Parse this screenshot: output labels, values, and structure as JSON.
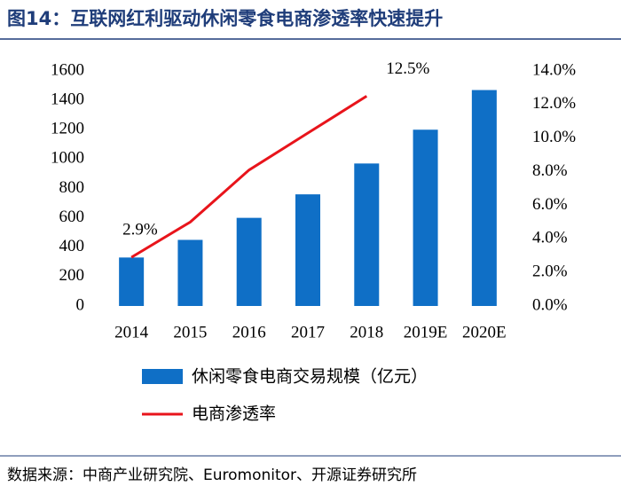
{
  "chart_data": {
    "type": "bar_line",
    "title": "图14：互联网红利驱动休闲零食电商渗透率快速提升",
    "source": "数据来源：中商产业研究院、Euromonitor、开源证券研究所",
    "categories": [
      "2014",
      "2015",
      "2016",
      "2017",
      "2018",
      "2019E",
      "2020E"
    ],
    "series": [
      {
        "name": "休闲零食电商交易规模（亿元）",
        "color": "#0f6fc6",
        "type": "bar",
        "values": [
          330,
          450,
          600,
          760,
          970,
          1200,
          1470
        ]
      },
      {
        "name": "电商渗透率",
        "color": "#e8141b",
        "type": "line",
        "axis": "y2",
        "values": [
          2.9,
          5.0,
          8.1,
          10.3,
          12.5,
          null,
          null
        ],
        "value_labels": [
          "2.9%",
          null,
          null,
          null,
          "12.5%",
          null,
          null
        ]
      }
    ],
    "ylim": [
      0,
      1600
    ],
    "yticks": [
      0,
      200,
      400,
      600,
      800,
      1000,
      1200,
      1400,
      1600
    ],
    "y2lim": [
      0,
      14
    ],
    "y2ticks": [
      {
        "value": 0,
        "label": "0.0%"
      },
      {
        "value": 2,
        "label": "2.0%"
      },
      {
        "value": 4,
        "label": "4.0%"
      },
      {
        "value": 6,
        "label": "6.0%"
      },
      {
        "value": 8,
        "label": "8.0%"
      },
      {
        "value": 10,
        "label": "10.0%"
      },
      {
        "value": 12,
        "label": "12.0%"
      },
      {
        "value": 14,
        "label": "14.0%"
      }
    ]
  }
}
